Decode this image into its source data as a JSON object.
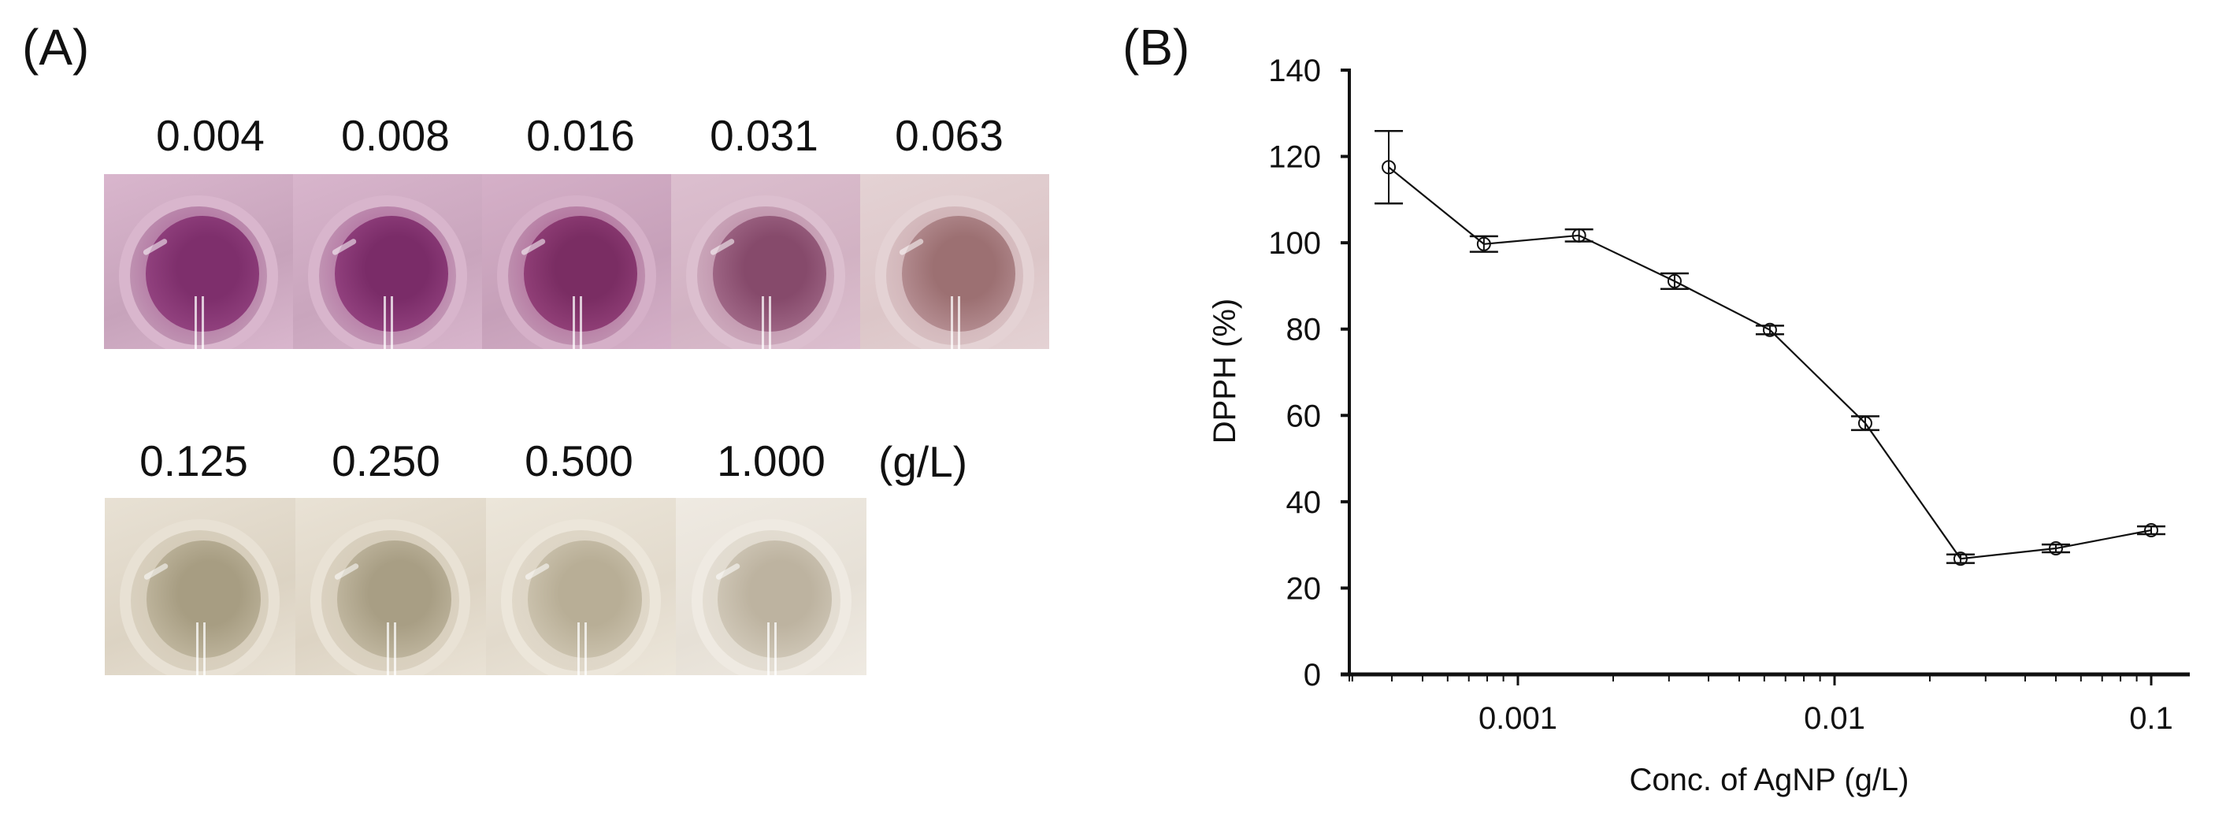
{
  "panel_a": {
    "label": "(A)",
    "top_row": {
      "labels": [
        "0.004",
        "0.008",
        "0.016",
        "0.031",
        "0.063"
      ],
      "label_centers_x": [
        267,
        502,
        737,
        970,
        1205
      ],
      "wells": [
        {
          "bg": "#c7a3bb",
          "rim": "#d9b6cd",
          "inner": "#7e2f6c",
          "inner_edge": "#a04f8c"
        },
        {
          "bg": "#c9a5bd",
          "rim": "#d8b5cc",
          "inner": "#7a2c68",
          "inner_edge": "#a24f8d"
        },
        {
          "bg": "#c6a0b9",
          "rim": "#d5b0c8",
          "inner": "#7a2d63",
          "inner_edge": "#a14c86"
        },
        {
          "bg": "#d2b2c3",
          "rim": "#dcbfcf",
          "inner": "#864a6b",
          "inner_edge": "#b07a98"
        },
        {
          "bg": "#dcc6c8",
          "rim": "#e4d2d4",
          "inner": "#9c7072",
          "inner_edge": "#c4a0a6"
        }
      ]
    },
    "bottom_row": {
      "labels": [
        "0.125",
        "0.250",
        "0.500",
        "1.000"
      ],
      "label_centers_x": [
        246,
        490,
        735,
        979
      ],
      "unit": "(g/L)",
      "wells": [
        {
          "bg": "#dcd3c3",
          "rim": "#e8e1d4",
          "inner": "#a79d82",
          "inner_edge": "#cdc4ae"
        },
        {
          "bg": "#ddd4c4",
          "rim": "#e9e2d5",
          "inner": "#a89e84",
          "inner_edge": "#cfc6b1"
        },
        {
          "bg": "#e2dacc",
          "rim": "#ece6da",
          "inner": "#b8ae96",
          "inner_edge": "#d7cfbd"
        },
        {
          "bg": "#e6e0d6",
          "rim": "#efeae2",
          "inner": "#bdb3a0",
          "inner_edge": "#dbd4c6"
        }
      ]
    }
  },
  "panel_b": {
    "label": "(B)"
  },
  "chart_data": {
    "type": "line",
    "title": "",
    "xlabel": "Conc. of AgNP (g/L)",
    "ylabel": "DPPH (%)",
    "xscale": "log",
    "xlim": [
      0.000293,
      0.13
    ],
    "ylim": [
      0,
      140
    ],
    "yticks": [
      0,
      20,
      40,
      60,
      80,
      100,
      120,
      140
    ],
    "xticks": [
      0.001,
      0.01,
      0.1
    ],
    "xtick_labels": [
      "0.001",
      "0.01",
      "0.1"
    ],
    "grid": false,
    "legend": null,
    "marker": "open-circle",
    "line_color": "#111111",
    "series": [
      {
        "name": "DPPH",
        "x": [
          0.000391,
          0.000781,
          0.00156,
          0.003125,
          0.00625,
          0.0125,
          0.025,
          0.05,
          0.1
        ],
        "values": [
          117.5,
          99.7,
          101.7,
          91.1,
          79.8,
          58.2,
          26.8,
          29.2,
          33.4
        ],
        "error": [
          8.4,
          1.8,
          1.4,
          1.8,
          1.0,
          1.6,
          1.0,
          0.9,
          0.9
        ]
      }
    ]
  }
}
